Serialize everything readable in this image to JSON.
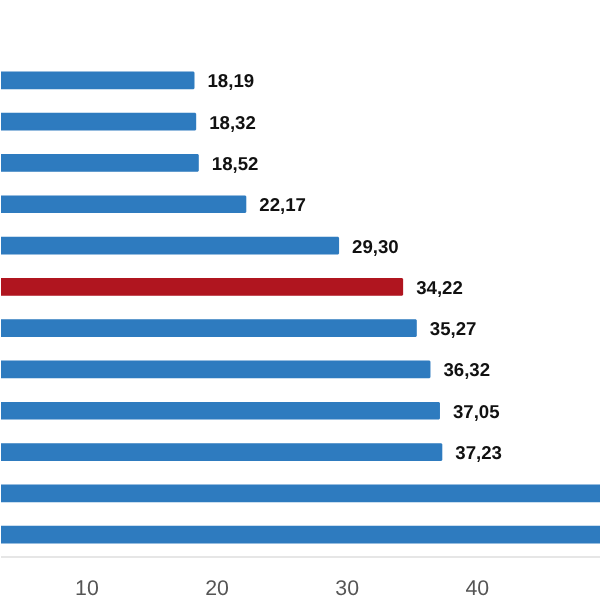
{
  "chart_data": {
    "type": "bar",
    "orientation": "horizontal",
    "categories": [
      null,
      null,
      null,
      null,
      null,
      null,
      null,
      null,
      null,
      null,
      null,
      null
    ],
    "values": [
      18.19,
      18.32,
      18.52,
      22.17,
      29.3,
      34.22,
      35.27,
      36.32,
      37.05,
      37.23,
      49.5,
      49.5
    ],
    "colors": [
      "#2e7bbf",
      "#2e7bbf",
      "#2e7bbf",
      "#2e7bbf",
      "#2e7bbf",
      "#b0151f",
      "#2e7bbf",
      "#2e7bbf",
      "#2e7bbf",
      "#2e7bbf",
      "#2e7bbf",
      "#2e7bbf"
    ],
    "value_labels": [
      "18,19",
      "18,32",
      "18,52",
      "22,17",
      "29,30",
      "34,22",
      "35,27",
      "36,32",
      "37,05",
      "37,23",
      null,
      null
    ],
    "xlim": [
      3.4,
      49.5
    ],
    "xticks": [
      10,
      20,
      30,
      40
    ],
    "grid": false
  }
}
